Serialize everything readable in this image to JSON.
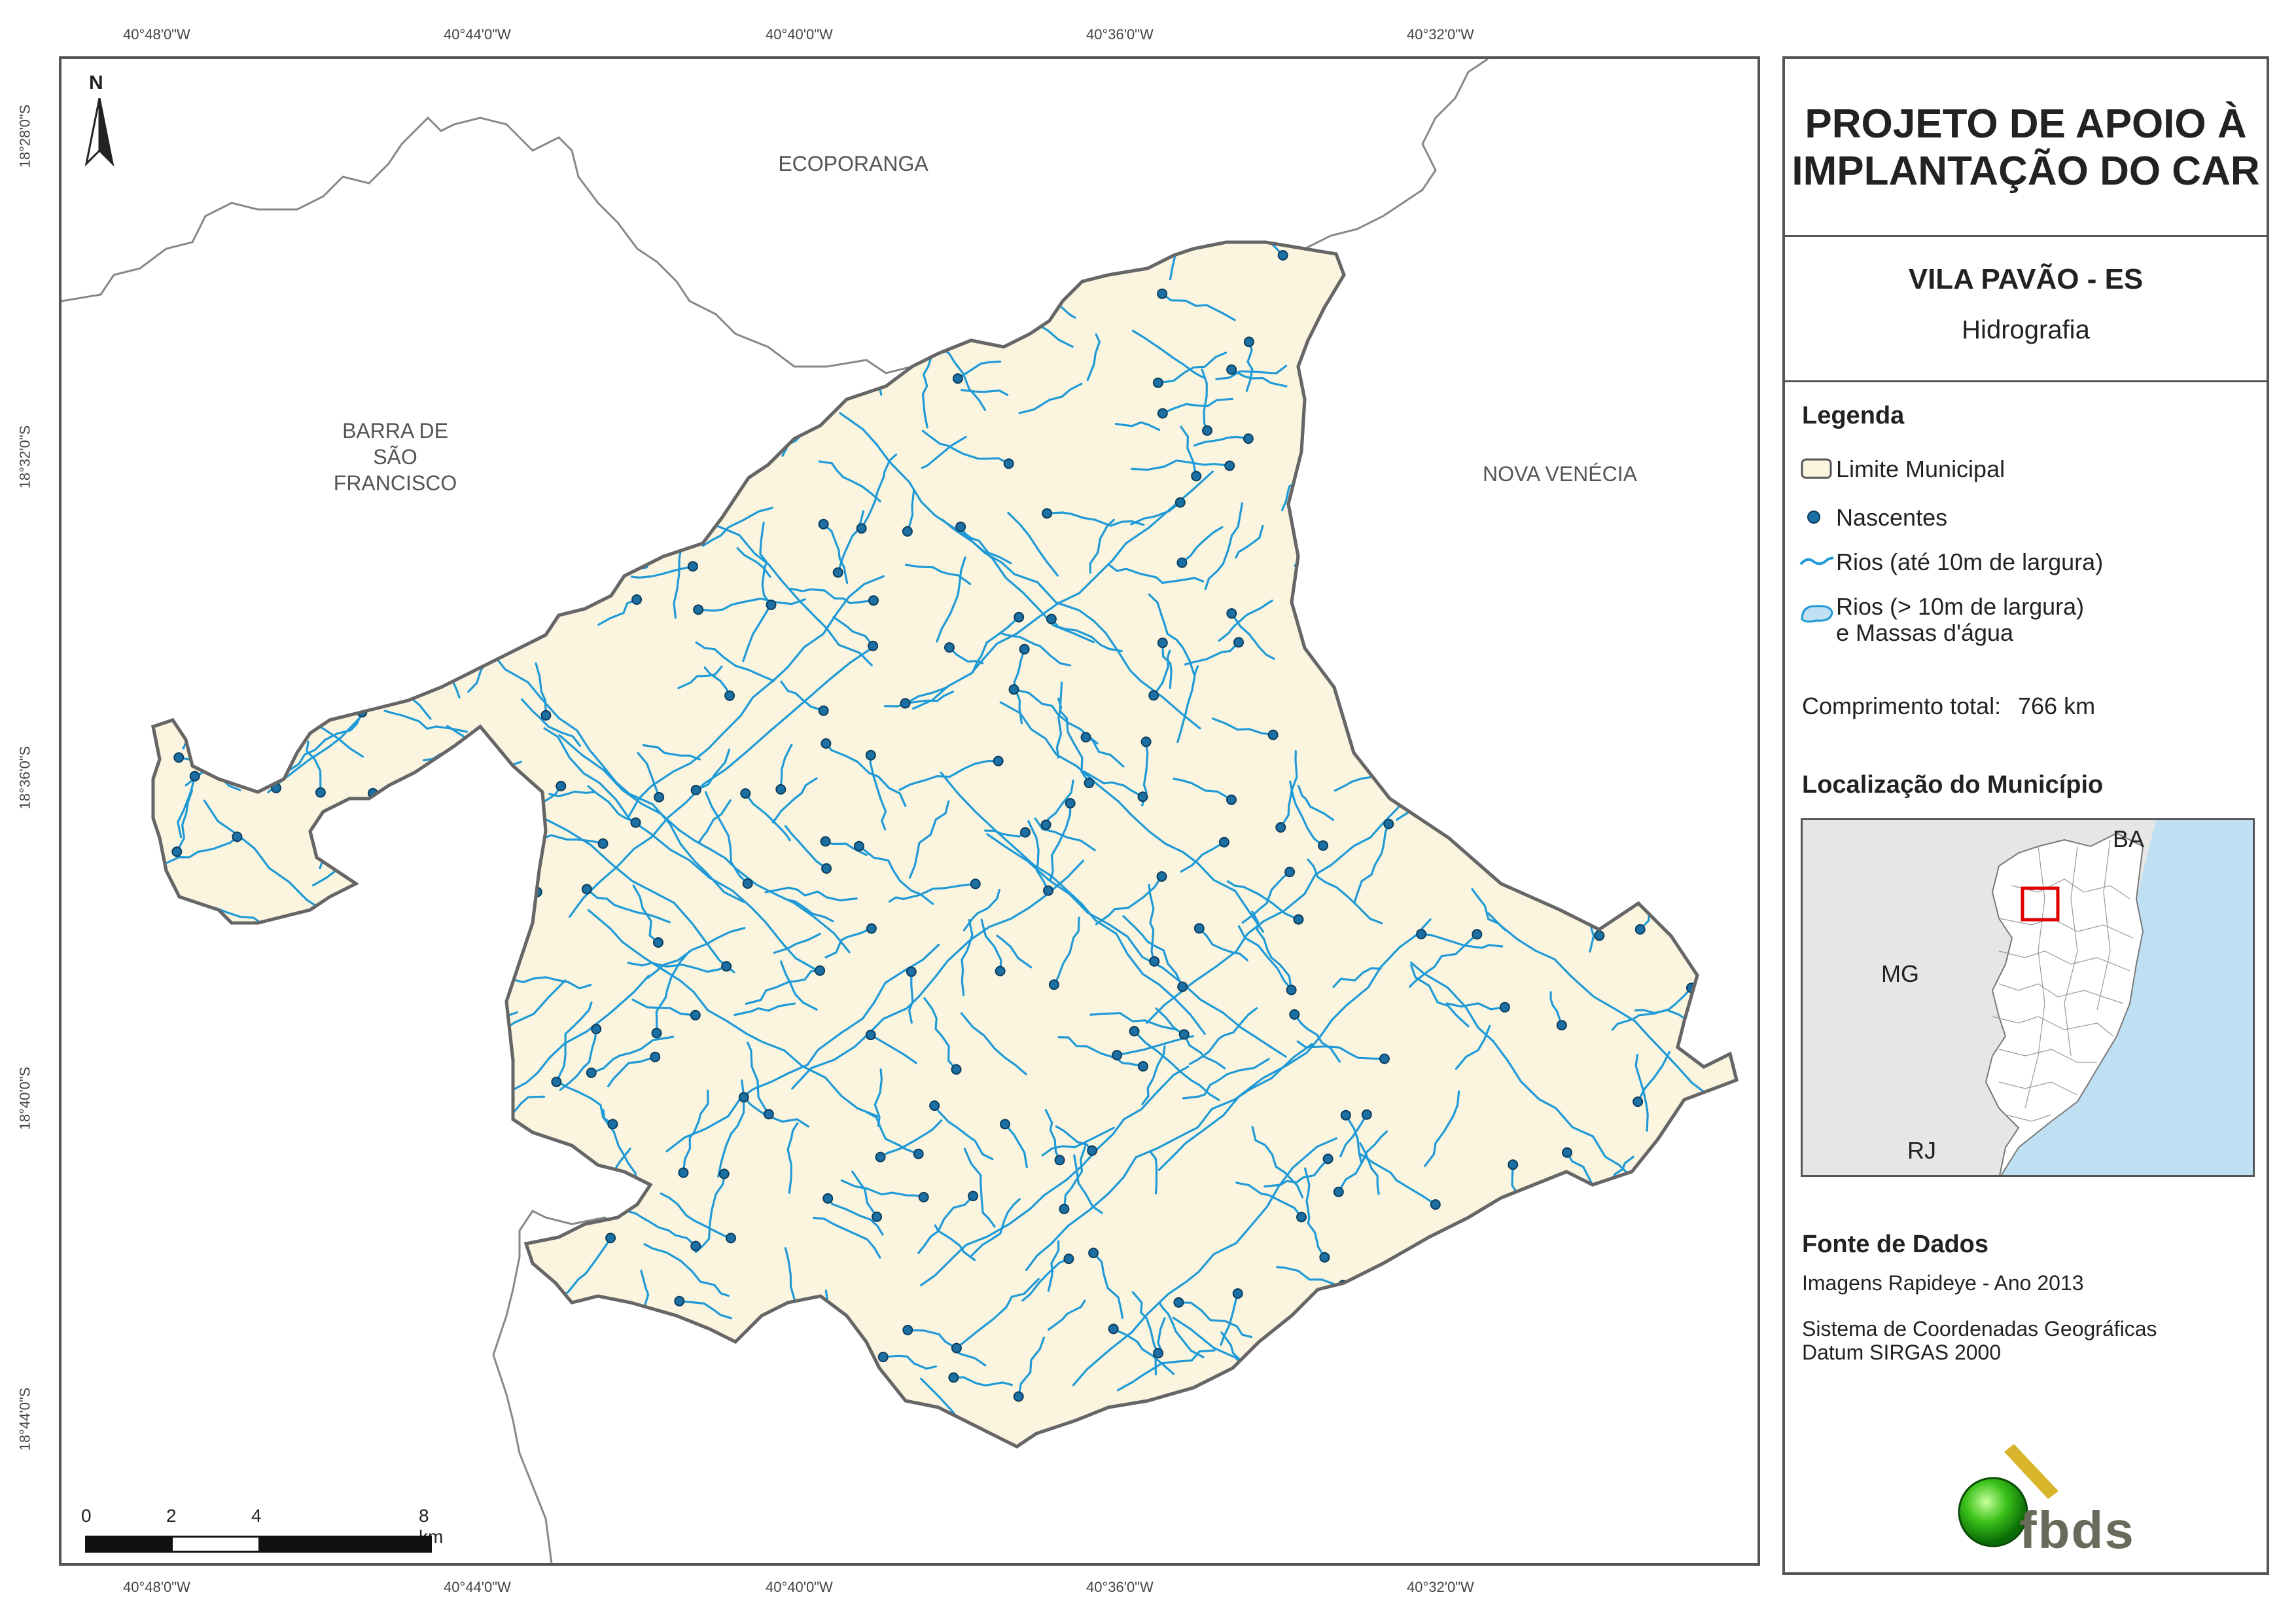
{
  "lon_ticks": [
    "40°48'0\"W",
    "40°44'0\"W",
    "40°40'0\"W",
    "40°36'0\"W",
    "40°32'0\"W"
  ],
  "lat_ticks": [
    "18°28'0\"S",
    "18°32'0\"S",
    "18°36'0\"S",
    "18°40'0\"S",
    "18°44'0\"S"
  ],
  "neighbors": {
    "ecoporanga": "ECOPORANGA",
    "barra_line1": "BARRA DE",
    "barra_line2": "SÃO",
    "barra_line3": "FRANCISCO",
    "nova_venecia": "NOVA VENÉCIA"
  },
  "north_arrow": "N",
  "scale_bar": {
    "labels": [
      "0",
      "2",
      "4",
      "8 km"
    ]
  },
  "panel": {
    "title_line1": "PROJETO DE APOIO À",
    "title_line2": "IMPLANTAÇÃO DO CAR",
    "municipality": "VILA PAVÃO - ES",
    "theme": "Hidrografia",
    "legend_title": "Legenda",
    "legend_items": [
      "Limite Municipal",
      "Nascentes",
      "Rios (até 10m de largura)",
      "Rios (> 10m de largura)",
      "e Massas d'água"
    ],
    "total_length_label": "Comprimento total:",
    "total_length_value": "766 km",
    "location_title": "Localização do Município",
    "location_labels": {
      "ba": "BA",
      "mg": "MG",
      "rj": "RJ"
    },
    "sources_title": "Fonte de Dados",
    "sources_line1": "Imagens Rapideye - Ano 2013",
    "sources_line2": "Sistema de Coordenadas Geográficas",
    "sources_line3": "Datum SIRGAS 2000",
    "logo_text": "fbds"
  },
  "colors": {
    "land": "#fbf5e0",
    "river": "#1f9ad6",
    "spring": "#1b6fa3",
    "boundary": "#666666",
    "ocean": "#bfe0f2",
    "highlight": "#e00000"
  }
}
